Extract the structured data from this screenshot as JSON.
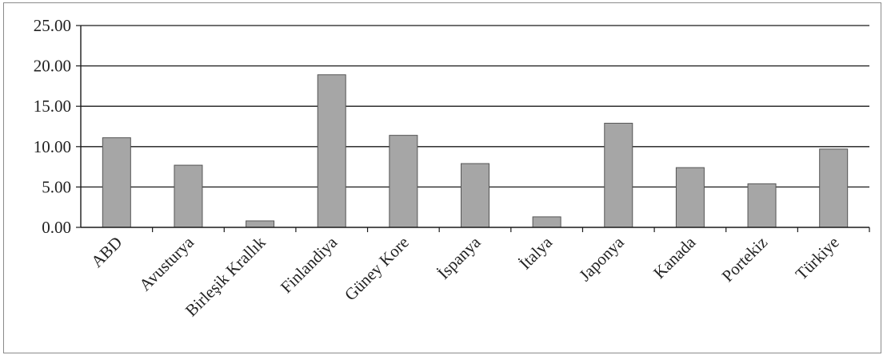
{
  "chart_data": {
    "type": "bar",
    "title": "",
    "xlabel": "",
    "ylabel": "",
    "categories": [
      "ABD",
      "Avusturya",
      "Birleşik Krallık",
      "Finlandiya",
      "Güney Kore",
      "İspanya",
      "İtalya",
      "Japonya",
      "Kanada",
      "Portekiz",
      "Türkiye"
    ],
    "values": [
      11.1,
      7.7,
      0.8,
      18.9,
      11.4,
      7.9,
      1.3,
      12.9,
      7.4,
      5.4,
      9.7
    ],
    "ylim": [
      0,
      25
    ],
    "yticks": [
      "0.00",
      "5.00",
      "10.00",
      "15.00",
      "20.00",
      "25.00"
    ],
    "grid": true,
    "legend": "none",
    "colors": {
      "bar": "#a6a6a6",
      "bar_stroke": "#555555",
      "grid": "#1a1a1a",
      "axis": "#1a1a1a"
    }
  }
}
